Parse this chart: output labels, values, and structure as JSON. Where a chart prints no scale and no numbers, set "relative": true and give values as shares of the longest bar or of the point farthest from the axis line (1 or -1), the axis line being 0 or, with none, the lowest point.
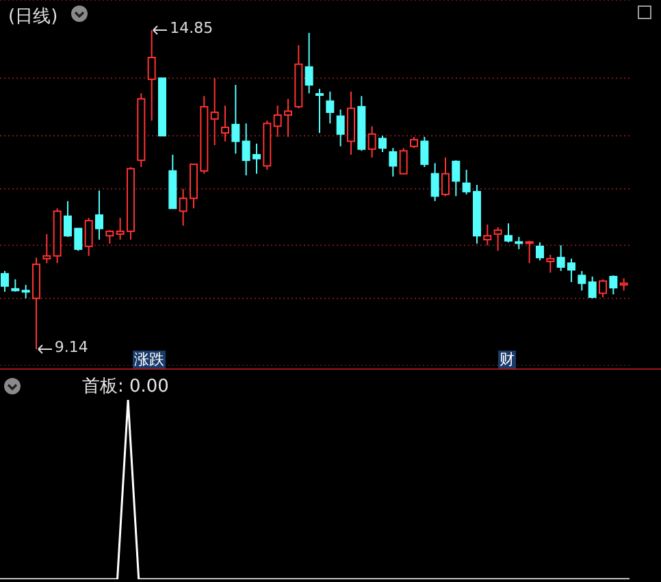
{
  "chart_data": [
    {
      "type": "candlestick",
      "title": "(日线)",
      "categories": [
        null,
        null,
        null,
        null,
        null,
        null,
        null,
        null,
        null,
        null,
        null,
        null,
        null,
        null,
        null,
        null,
        null,
        null,
        null,
        null,
        null,
        null,
        null,
        null,
        null,
        null,
        null,
        null,
        null,
        null,
        null,
        null,
        null,
        null,
        null,
        null,
        null,
        null,
        null,
        null,
        null,
        null,
        null,
        null,
        null,
        null,
        null,
        null,
        null,
        null,
        null,
        null,
        null,
        null,
        null,
        null,
        null,
        null,
        null,
        null
      ],
      "ohlc": [
        [
          10.49,
          10.54,
          10.17,
          10.27
        ],
        [
          10.22,
          10.39,
          10.17,
          10.19
        ],
        [
          10.19,
          10.29,
          10.05,
          10.17
        ],
        [
          10.05,
          10.78,
          9.14,
          10.66
        ],
        [
          10.76,
          11.2,
          10.68,
          10.81
        ],
        [
          10.81,
          11.66,
          10.68,
          11.61
        ],
        [
          11.52,
          11.79,
          11.15,
          11.17
        ],
        [
          11.3,
          11.3,
          10.9,
          10.93
        ],
        [
          10.98,
          11.49,
          10.81,
          11.44
        ],
        [
          11.54,
          11.98,
          11.1,
          11.3
        ],
        [
          11.17,
          11.27,
          11.03,
          11.25
        ],
        [
          11.2,
          11.49,
          11.1,
          11.25
        ],
        [
          11.25,
          12.4,
          11.1,
          12.37
        ],
        [
          12.52,
          13.72,
          12.4,
          13.62
        ],
        [
          13.97,
          14.85,
          13.23,
          14.36
        ],
        [
          13.99,
          13.99,
          12.96,
          12.96
        ],
        [
          12.33,
          12.62,
          11.66,
          11.66
        ],
        [
          11.61,
          12.01,
          11.35,
          11.84
        ],
        [
          11.84,
          12.45,
          11.66,
          12.45
        ],
        [
          12.33,
          13.67,
          12.28,
          13.48
        ],
        [
          13.26,
          13.99,
          12.79,
          13.38
        ],
        [
          13.01,
          13.5,
          12.86,
          13.11
        ],
        [
          13.16,
          13.87,
          12.64,
          12.86
        ],
        [
          12.86,
          13.18,
          12.25,
          12.52
        ],
        [
          12.62,
          12.82,
          12.28,
          12.55
        ],
        [
          12.42,
          13.23,
          12.35,
          13.18
        ],
        [
          13.13,
          13.5,
          12.94,
          13.33
        ],
        [
          13.33,
          13.62,
          12.94,
          13.4
        ],
        [
          13.48,
          14.58,
          13.45,
          14.24
        ],
        [
          14.19,
          14.8,
          13.72,
          13.87
        ],
        [
          13.71,
          13.8,
          13.01,
          13.69
        ],
        [
          13.58,
          13.75,
          13.18,
          13.38
        ],
        [
          13.31,
          13.43,
          12.77,
          12.99
        ],
        [
          12.86,
          13.75,
          12.62,
          13.45
        ],
        [
          13.48,
          13.67,
          12.69,
          12.72
        ],
        [
          12.72,
          13.13,
          12.57,
          12.99
        ],
        [
          12.91,
          12.96,
          12.67,
          12.74
        ],
        [
          12.67,
          12.74,
          12.23,
          12.42
        ],
        [
          12.28,
          12.74,
          12.28,
          12.69
        ],
        [
          12.77,
          12.94,
          12.74,
          12.89
        ],
        [
          12.86,
          12.94,
          12.4,
          12.45
        ],
        [
          12.28,
          12.47,
          11.79,
          11.88
        ],
        [
          11.91,
          12.57,
          11.88,
          12.28
        ],
        [
          12.5,
          12.52,
          11.88,
          12.15
        ],
        [
          12.11,
          12.35,
          11.91,
          11.96
        ],
        [
          11.96,
          12.08,
          11.03,
          11.17
        ],
        [
          11.1,
          11.37,
          11.0,
          11.17
        ],
        [
          11.2,
          11.32,
          10.9,
          11.27
        ],
        [
          11.17,
          11.39,
          11.05,
          11.08
        ],
        [
          11.06,
          11.15,
          10.93,
          11.04
        ],
        [
          11.04,
          11.08,
          10.68,
          11.06
        ],
        [
          10.98,
          11.05,
          10.73,
          10.78
        ],
        [
          10.71,
          10.83,
          10.51,
          10.76
        ],
        [
          10.78,
          11.0,
          10.54,
          10.61
        ],
        [
          10.68,
          10.76,
          10.34,
          10.56
        ],
        [
          10.46,
          10.54,
          10.19,
          10.32
        ],
        [
          10.34,
          10.44,
          10.05,
          10.07
        ],
        [
          10.14,
          10.39,
          10.07,
          10.36
        ],
        [
          10.44,
          10.46,
          10.12,
          10.24
        ],
        [
          10.29,
          10.41,
          10.19,
          10.32
        ]
      ],
      "colors": [
        "#54fcfc",
        "#54fcfc",
        "#54fcfc",
        "#ff3232",
        "#ff3232",
        "#ff3232",
        "#54fcfc",
        "#54fcfc",
        "#ff3232",
        "#54fcfc",
        "#ff3232",
        "#ff3232",
        "#ff3232",
        "#ff3232",
        "#ff3232",
        "#54fcfc",
        "#54fcfc",
        "#ff3232",
        "#ff3232",
        "#ff3232",
        "#ff3232",
        "#ff3232",
        "#54fcfc",
        "#54fcfc",
        "#54fcfc",
        "#ff3232",
        "#ff3232",
        "#ff3232",
        "#ff3232",
        "#54fcfc",
        "#54fcfc",
        "#54fcfc",
        "#54fcfc",
        "#ff3232",
        "#54fcfc",
        "#ff3232",
        "#54fcfc",
        "#54fcfc",
        "#ff3232",
        "#ff3232",
        "#54fcfc",
        "#54fcfc",
        "#ff3232",
        "#54fcfc",
        "#54fcfc",
        "#54fcfc",
        "#ff3232",
        "#ff3232",
        "#54fcfc",
        "#54fcfc",
        "#ff3232",
        "#54fcfc",
        "#ff3232",
        "#54fcfc",
        "#54fcfc",
        "#54fcfc",
        "#54fcfc",
        "#ff3232",
        "#54fcfc",
        "#ff3232"
      ],
      "annotations": [
        "14.85",
        "9.14",
        "涨跌",
        "财"
      ],
      "yticks": [
        {
          "value": 10.05,
          "label": null
        },
        {
          "value": 11.0,
          "label": null
        },
        {
          "value": 12.01,
          "label": null
        },
        {
          "value": 12.96,
          "label": null
        },
        {
          "value": 13.99,
          "label": null
        }
      ],
      "grid": "y",
      "tick_labels": false
    },
    {
      "type": "line",
      "title": "首板: 0.00",
      "relative": true,
      "categories": [
        null,
        null,
        null,
        null,
        null,
        null,
        null,
        null,
        null,
        null,
        null,
        null,
        null,
        null,
        null,
        null,
        null,
        null,
        null,
        null,
        null,
        null,
        null,
        null,
        null,
        null,
        null,
        null,
        null,
        null,
        null,
        null,
        null,
        null,
        null,
        null,
        null,
        null,
        null,
        null,
        null,
        null,
        null,
        null,
        null,
        null,
        null,
        null,
        null,
        null,
        null,
        null,
        null,
        null,
        null,
        null,
        null,
        null,
        null,
        null
      ],
      "series": [
        {
          "color": "#ffffff",
          "values": [
            0,
            0,
            0,
            0,
            0,
            0,
            0,
            0,
            0,
            0,
            0,
            0,
            1,
            0,
            0,
            0,
            0,
            0,
            0,
            0,
            0,
            0,
            0,
            0,
            0,
            0,
            0,
            0,
            0,
            0,
            0,
            0,
            0,
            0,
            0,
            0,
            0,
            0,
            0,
            0,
            0,
            0,
            0,
            0,
            0,
            0,
            0,
            0,
            0,
            0,
            0,
            0,
            0,
            0,
            0,
            0,
            0,
            0,
            0,
            0
          ]
        }
      ],
      "tick_labels": false
    }
  ]
}
